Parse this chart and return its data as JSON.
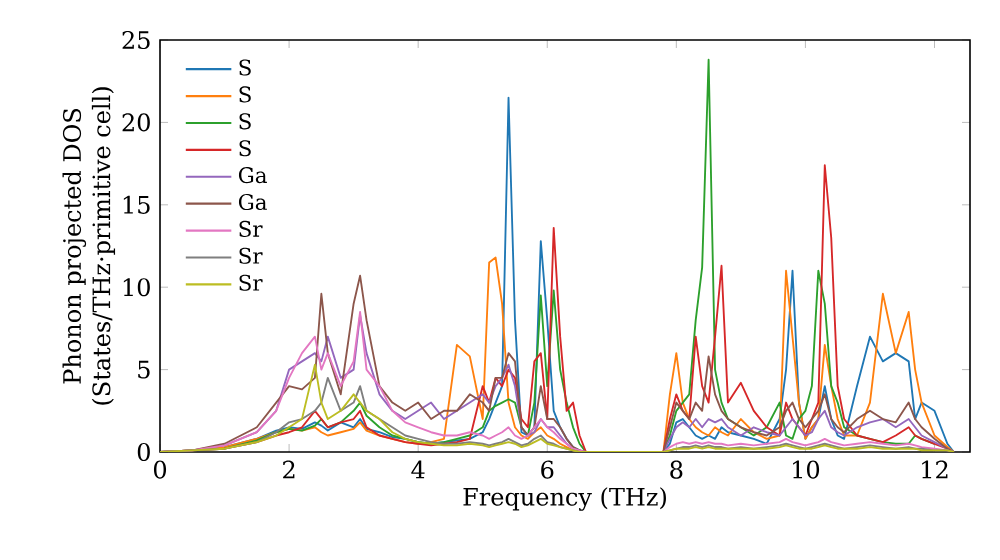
{
  "chart_data": {
    "type": "line",
    "xlabel": "Frequency (THz)",
    "ylabel": "Phonon projected DOS\n(States/THz·primitive cell)",
    "xlim": [
      0,
      12.55
    ],
    "ylim": [
      0,
      25
    ],
    "xticks": [
      0,
      2,
      4,
      6,
      8,
      10,
      12
    ],
    "yticks": [
      0,
      5,
      10,
      15,
      20,
      25
    ],
    "grid": false,
    "legend": "top left",
    "x": [
      0,
      0.5,
      1.0,
      1.5,
      1.8,
      2.0,
      2.2,
      2.4,
      2.5,
      2.6,
      2.8,
      3.0,
      3.1,
      3.2,
      3.4,
      3.6,
      3.8,
      4.0,
      4.2,
      4.4,
      4.6,
      4.8,
      5.0,
      5.1,
      5.2,
      5.3,
      5.4,
      5.5,
      5.6,
      5.7,
      5.8,
      5.9,
      6.0,
      6.1,
      6.2,
      6.3,
      6.4,
      6.5,
      6.6,
      7.8,
      7.9,
      8.0,
      8.1,
      8.2,
      8.3,
      8.4,
      8.5,
      8.6,
      8.7,
      8.8,
      9.0,
      9.2,
      9.4,
      9.6,
      9.7,
      9.8,
      9.9,
      10.0,
      10.1,
      10.2,
      10.3,
      10.4,
      10.5,
      10.6,
      10.8,
      11.0,
      11.2,
      11.4,
      11.6,
      11.7,
      11.8,
      12.0,
      12.2,
      12.3
    ],
    "series": [
      {
        "name": "S",
        "color": "#1f77b4",
        "values": [
          null,
          null,
          0.3,
          0.8,
          1.3,
          1.5,
          1.4,
          1.8,
          1.6,
          1.3,
          1.8,
          1.5,
          2.0,
          1.4,
          1.2,
          0.9,
          0.8,
          0.6,
          0.5,
          0.6,
          0.7,
          0.8,
          1.2,
          2.0,
          3.0,
          4.0,
          21.5,
          8.0,
          1.2,
          1.0,
          1.5,
          12.8,
          8.0,
          2.5,
          1.5,
          0.8,
          0.3,
          0.1,
          0,
          0,
          0.5,
          1.8,
          2.0,
          1.5,
          1.0,
          0.8,
          1.0,
          0.8,
          1.5,
          1.2,
          1.0,
          0.8,
          0.5,
          2.0,
          5.0,
          11.0,
          3.0,
          0.8,
          1.5,
          2.0,
          4.0,
          2.0,
          1.0,
          0.8,
          4.0,
          7.0,
          5.5,
          6.0,
          5.5,
          2.0,
          3.0,
          2.5,
          0.5,
          0
        ]
      },
      {
        "name": "S",
        "color": "#ff7f0e",
        "values": [
          0,
          0.1,
          0.3,
          0.8,
          1.2,
          1.4,
          1.3,
          1.5,
          1.2,
          1.0,
          1.2,
          1.4,
          1.8,
          1.3,
          1.0,
          0.8,
          0.6,
          0.5,
          0.6,
          0.8,
          6.5,
          5.8,
          2.0,
          11.5,
          11.8,
          9.0,
          3.0,
          1.5,
          1.0,
          0.8,
          1.2,
          1.5,
          1.0,
          0.8,
          0.5,
          0.3,
          0.1,
          0,
          0,
          0,
          3.5,
          6.0,
          3.0,
          2.0,
          1.5,
          1.2,
          1.0,
          1.5,
          1.2,
          1.0,
          2.0,
          1.2,
          0.8,
          1.0,
          11.0,
          7.0,
          3.0,
          0.8,
          1.5,
          2.0,
          6.5,
          4.0,
          2.0,
          1.0,
          1.0,
          3.0,
          9.6,
          6.0,
          8.5,
          5.0,
          3.0,
          1.0,
          0.3,
          0
        ]
      },
      {
        "name": "S",
        "color": "#2ca02c",
        "values": [
          0,
          0.1,
          0.2,
          0.7,
          1.2,
          1.4,
          1.3,
          1.6,
          2.0,
          1.5,
          1.8,
          2.5,
          3.0,
          2.2,
          1.5,
          1.0,
          0.8,
          0.6,
          0.5,
          0.6,
          0.8,
          1.0,
          1.5,
          2.5,
          2.8,
          3.0,
          3.2,
          3.0,
          1.5,
          1.0,
          3.0,
          9.5,
          4.0,
          9.8,
          5.0,
          3.0,
          1.5,
          0.5,
          0,
          0,
          1.0,
          2.5,
          3.0,
          3.5,
          8.0,
          11.2,
          23.8,
          5.0,
          3.0,
          2.0,
          1.5,
          1.0,
          1.5,
          3.0,
          1.0,
          0.8,
          2.0,
          2.5,
          4.0,
          11.0,
          9.0,
          4.0,
          3.0,
          1.5,
          1.0,
          0.8,
          0.6,
          0.5,
          0.5,
          1.0,
          0.8,
          0.5,
          null,
          null
        ]
      },
      {
        "name": "S",
        "color": "#d62728",
        "values": [
          0,
          0.1,
          0.2,
          0.6,
          1.0,
          1.2,
          1.5,
          2.5,
          2.0,
          1.5,
          1.8,
          2.0,
          2.5,
          1.5,
          1.0,
          0.8,
          0.6,
          0.5,
          0.4,
          0.5,
          0.6,
          0.8,
          4.0,
          3.0,
          4.5,
          4.0,
          5.0,
          4.5,
          2.0,
          1.5,
          5.5,
          6.0,
          2.0,
          13.6,
          7.0,
          2.5,
          3.0,
          1.0,
          0,
          0,
          2.0,
          3.5,
          2.5,
          2.0,
          7.0,
          4.0,
          3.0,
          7.0,
          11.3,
          3.0,
          4.2,
          2.5,
          1.5,
          1.0,
          3.0,
          2.0,
          1.5,
          1.0,
          2.0,
          3.0,
          17.4,
          13.0,
          4.0,
          2.0,
          1.0,
          0.8,
          0.6,
          1.0,
          1.5,
          1.0,
          0.8,
          0.5,
          0.2,
          0
        ]
      },
      {
        "name": "Ga",
        "color": "#9467bd",
        "values": [
          0,
          0.1,
          0.4,
          1.2,
          2.5,
          5.0,
          5.5,
          6.0,
          5.5,
          7.0,
          4.5,
          5.0,
          8.3,
          6.0,
          3.5,
          2.5,
          2.0,
          2.5,
          3.0,
          2.0,
          2.5,
          3.0,
          3.5,
          3.0,
          4.0,
          4.5,
          5.3,
          4.0,
          1.5,
          1.0,
          1.2,
          2.0,
          1.5,
          1.5,
          1.0,
          0.5,
          0.2,
          0.1,
          0,
          0,
          0.8,
          1.5,
          1.8,
          1.5,
          2.0,
          1.5,
          2.0,
          1.8,
          2.0,
          1.5,
          1.0,
          1.5,
          1.2,
          1.0,
          1.5,
          2.0,
          1.5,
          1.0,
          1.2,
          2.0,
          2.5,
          1.5,
          1.2,
          1.0,
          1.5,
          1.8,
          2.0,
          1.5,
          2.0,
          1.5,
          1.0,
          0.6,
          0.2,
          0
        ]
      },
      {
        "name": "Ga",
        "color": "#8c564b",
        "values": [
          0,
          0.1,
          0.5,
          1.5,
          3.0,
          4.0,
          3.8,
          4.5,
          9.6,
          6.0,
          3.5,
          9.0,
          10.7,
          8.0,
          4.0,
          3.0,
          2.5,
          3.0,
          2.0,
          2.5,
          2.5,
          3.5,
          3.0,
          2.5,
          4.5,
          4.5,
          6.0,
          5.5,
          1.5,
          1.0,
          1.5,
          4.0,
          2.0,
          2.0,
          1.5,
          0.8,
          0.3,
          0.1,
          0,
          0,
          1.5,
          3.0,
          2.5,
          2.0,
          3.0,
          2.5,
          5.8,
          3.5,
          2.5,
          2.0,
          1.5,
          1.2,
          1.0,
          1.5,
          2.5,
          3.0,
          2.0,
          1.5,
          2.0,
          2.5,
          3.5,
          2.0,
          1.5,
          1.2,
          2.0,
          2.5,
          2.0,
          1.8,
          3.0,
          2.0,
          1.5,
          0.8,
          0.2,
          0
        ]
      },
      {
        "name": "Sr",
        "color": "#e377c2",
        "values": [
          0,
          0.1,
          0.4,
          1.2,
          2.5,
          4.5,
          6.0,
          7.0,
          5.0,
          6.0,
          4.0,
          5.5,
          8.5,
          5.0,
          4.0,
          2.5,
          1.8,
          1.5,
          1.2,
          1.0,
          1.0,
          1.2,
          1.0,
          0.8,
          1.0,
          1.2,
          1.5,
          1.0,
          0.8,
          1.0,
          1.5,
          2.0,
          1.5,
          1.2,
          0.8,
          0.5,
          0.2,
          0.1,
          0,
          0,
          0.3,
          0.5,
          0.6,
          0.5,
          0.6,
          0.5,
          0.6,
          0.5,
          0.5,
          0.4,
          0.5,
          0.4,
          0.5,
          0.6,
          0.8,
          0.6,
          0.5,
          0.4,
          0.5,
          0.6,
          0.8,
          0.6,
          0.5,
          0.4,
          0.5,
          0.6,
          0.5,
          0.4,
          0.5,
          0.4,
          0.3,
          0.2,
          0.1,
          0
        ]
      },
      {
        "name": "Sr",
        "color": "#7f7f7f",
        "values": [
          0,
          0.1,
          0.2,
          0.6,
          1.2,
          1.8,
          2.0,
          2.5,
          3.0,
          4.5,
          2.5,
          3.0,
          4.0,
          2.5,
          2.0,
          1.5,
          1.0,
          0.8,
          0.6,
          0.5,
          0.5,
          0.6,
          0.5,
          0.4,
          0.5,
          0.6,
          0.8,
          0.6,
          0.4,
          0.5,
          0.8,
          1.0,
          0.6,
          0.5,
          0.3,
          0.2,
          0.1,
          0,
          0,
          0,
          0.1,
          0.2,
          0.3,
          0.3,
          0.4,
          0.3,
          0.4,
          0.3,
          0.3,
          0.2,
          0.3,
          0.2,
          0.3,
          0.4,
          0.5,
          0.4,
          0.3,
          0.2,
          0.3,
          0.4,
          0.5,
          0.4,
          0.3,
          0.2,
          0.3,
          0.4,
          0.3,
          0.2,
          0.3,
          0.2,
          0.2,
          0.1,
          0.1,
          0
        ]
      },
      {
        "name": "Sr",
        "color": "#bcbd22",
        "values": [
          0,
          0.1,
          0.2,
          0.6,
          1.0,
          1.5,
          2.0,
          5.3,
          3.0,
          2.0,
          2.5,
          3.5,
          3.0,
          2.5,
          2.0,
          1.2,
          0.8,
          0.6,
          0.5,
          0.4,
          0.4,
          0.5,
          0.4,
          0.3,
          0.4,
          0.5,
          0.6,
          0.5,
          0.3,
          0.4,
          0.6,
          0.8,
          0.5,
          0.4,
          0.3,
          0.2,
          0.1,
          0,
          0,
          0,
          0.1,
          0.2,
          0.2,
          0.2,
          0.3,
          0.2,
          0.3,
          0.2,
          0.2,
          0.2,
          0.2,
          0.2,
          0.2,
          0.3,
          0.4,
          0.3,
          0.2,
          0.2,
          0.2,
          0.3,
          0.4,
          0.3,
          0.2,
          0.2,
          0.2,
          0.3,
          0.2,
          0.2,
          0.2,
          0.2,
          0.1,
          0.1,
          0.1,
          0
        ]
      }
    ]
  }
}
